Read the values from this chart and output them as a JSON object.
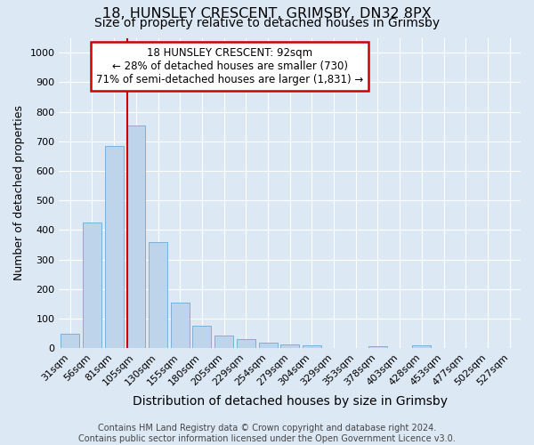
{
  "title1": "18, HUNSLEY CRESCENT, GRIMSBY, DN32 8PX",
  "title2": "Size of property relative to detached houses in Grimsby",
  "xlabel": "Distribution of detached houses by size in Grimsby",
  "ylabel": "Number of detached properties",
  "categories": [
    "31sqm",
    "56sqm",
    "81sqm",
    "105sqm",
    "130sqm",
    "155sqm",
    "180sqm",
    "205sqm",
    "229sqm",
    "254sqm",
    "279sqm",
    "304sqm",
    "329sqm",
    "353sqm",
    "378sqm",
    "403sqm",
    "428sqm",
    "453sqm",
    "477sqm",
    "502sqm",
    "527sqm"
  ],
  "values": [
    50,
    425,
    685,
    755,
    360,
    155,
    75,
    42,
    30,
    20,
    13,
    10,
    0,
    0,
    8,
    0,
    10,
    0,
    0,
    0,
    0
  ],
  "bar_color": "#bdd4ea",
  "bar_edge_color": "#6aaad4",
  "bar_width": 0.85,
  "red_line_x": 2.62,
  "annotation_line1": "18 HUNSLEY CRESCENT: 92sqm",
  "annotation_line2": "← 28% of detached houses are smaller (730)",
  "annotation_line3": "71% of semi-detached houses are larger (1,831) →",
  "annotation_box_color": "#ffffff",
  "annotation_box_edge": "#cc0000",
  "red_line_color": "#cc0000",
  "ylim": [
    0,
    1050
  ],
  "yticks": [
    0,
    100,
    200,
    300,
    400,
    500,
    600,
    700,
    800,
    900,
    1000
  ],
  "bg_color": "#dde8f5",
  "plot_bg_color": "#dde8f5",
  "footer_text": "Contains HM Land Registry data © Crown copyright and database right 2024.\nContains public sector information licensed under the Open Government Licence v3.0.",
  "title1_fontsize": 11.5,
  "title2_fontsize": 10,
  "xlabel_fontsize": 10,
  "ylabel_fontsize": 9,
  "tick_fontsize": 8,
  "annot_fontsize": 8.5,
  "footer_fontsize": 7
}
